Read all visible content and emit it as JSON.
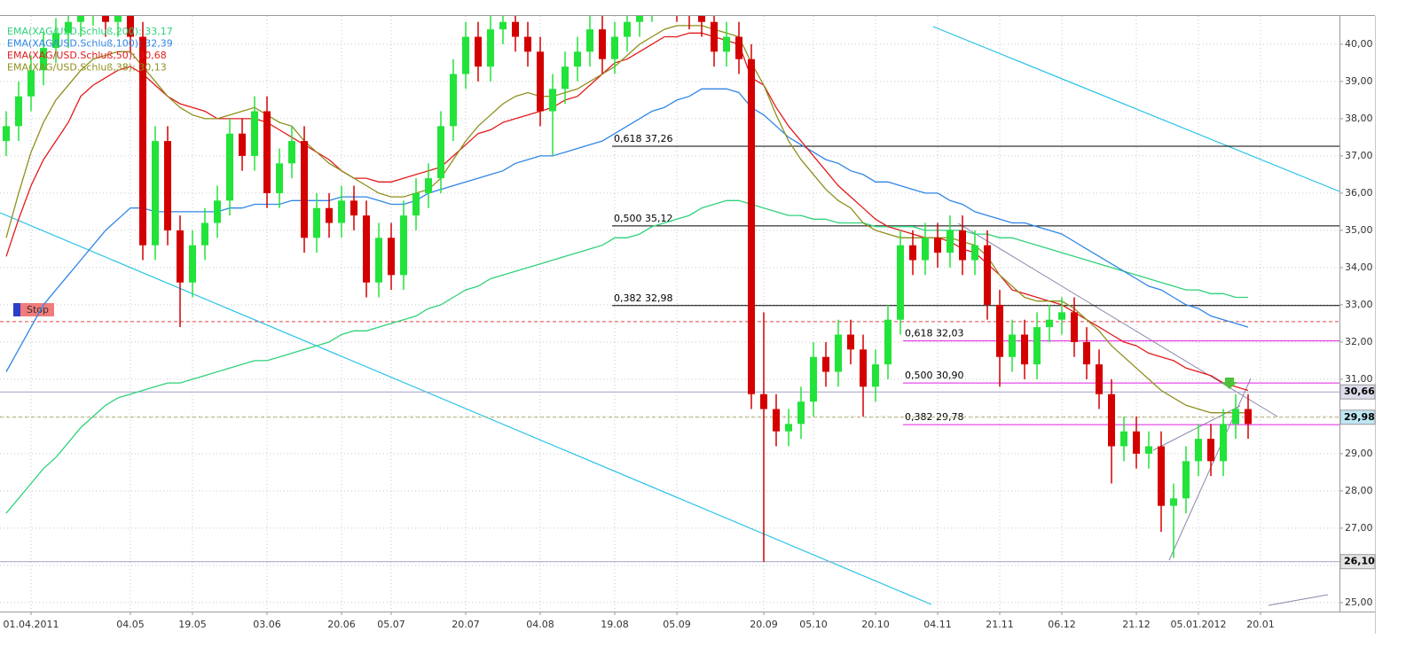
{
  "chart_data": {
    "type": "candlestick",
    "categories": [
      null,
      null,
      "01.04.2011",
      null,
      null,
      null,
      null,
      null,
      null,
      null,
      "04.05",
      null,
      null,
      null,
      null,
      "19.05",
      null,
      null,
      null,
      null,
      null,
      "03.06",
      null,
      null,
      null,
      null,
      null,
      "20.06",
      null,
      null,
      null,
      "05.07",
      null,
      null,
      null,
      null,
      null,
      "20.07",
      null,
      null,
      null,
      null,
      null,
      "04.08",
      null,
      null,
      null,
      null,
      null,
      "19.08",
      null,
      null,
      null,
      null,
      "05.09",
      null,
      null,
      null,
      null,
      null,
      null,
      "20.09",
      null,
      null,
      null,
      "05.10",
      null,
      null,
      null,
      null,
      "20.10",
      null,
      null,
      null,
      null,
      "04.11",
      null,
      null,
      null,
      null,
      "21.11",
      null,
      null,
      null,
      null,
      "06.12",
      null,
      null,
      null,
      null,
      null,
      "21.12",
      null,
      null,
      null,
      null,
      "05.01.2012",
      null,
      null,
      null,
      null,
      "20.01"
    ],
    "open": [
      37.4,
      37.8,
      38.6,
      39.3,
      39.9,
      40.3,
      40.6,
      40.9,
      41.0,
      40.6,
      40.8,
      40.2,
      34.6,
      37.4,
      35.0,
      33.6,
      34.6,
      35.2,
      35.8,
      37.6,
      37.0,
      38.2,
      36.0,
      36.8,
      37.4,
      34.8,
      35.6,
      35.2,
      35.8,
      35.4,
      33.6,
      34.8,
      33.8,
      35.4,
      36.0,
      36.4,
      37.8,
      39.2,
      40.2,
      39.4,
      40.4,
      40.6,
      40.2,
      39.8,
      38.2,
      38.8,
      39.4,
      39.8,
      40.4,
      39.6,
      40.2,
      40.6,
      41.0,
      41.2,
      41.4,
      41.0,
      40.8,
      40.6,
      39.8,
      40.2,
      39.6,
      30.6,
      30.2,
      29.6,
      29.8,
      30.4,
      31.6,
      31.2,
      32.2,
      31.8,
      30.8,
      31.4,
      32.6,
      34.6,
      34.2,
      34.8,
      34.4,
      35.0,
      34.2,
      34.6,
      33.0,
      31.6,
      32.2,
      31.4,
      32.4,
      32.6,
      32.8,
      32.0,
      31.4,
      30.6,
      29.2,
      29.6,
      29.0,
      29.2,
      27.6,
      27.8,
      28.8,
      29.4,
      28.8,
      29.8,
      30.2,
      null
    ],
    "high": [
      38.2,
      39.0,
      39.7,
      40.3,
      40.7,
      41.0,
      41.3,
      41.4,
      41.4,
      41.2,
      41.2,
      40.6,
      37.8,
      37.8,
      35.4,
      35.0,
      35.6,
      36.2,
      38.0,
      38.0,
      38.6,
      38.6,
      37.2,
      37.8,
      37.8,
      36.0,
      36.0,
      36.2,
      36.2,
      35.8,
      35.2,
      35.2,
      35.8,
      36.4,
      36.8,
      38.2,
      39.6,
      40.6,
      40.6,
      40.8,
      41.0,
      41.0,
      40.6,
      40.2,
      39.2,
      39.8,
      40.2,
      40.8,
      40.8,
      40.6,
      41.0,
      41.4,
      41.6,
      41.8,
      41.8,
      41.4,
      41.2,
      41.0,
      40.6,
      40.6,
      40.0,
      32.8,
      30.6,
      30.2,
      30.8,
      32.0,
      32.0,
      32.6,
      32.6,
      32.2,
      31.8,
      33.0,
      35.0,
      35.0,
      35.2,
      35.2,
      35.4,
      35.4,
      35.0,
      35.0,
      33.4,
      32.6,
      32.6,
      32.8,
      33.0,
      33.2,
      33.2,
      32.4,
      31.8,
      31.0,
      30.0,
      30.0,
      29.6,
      29.6,
      28.2,
      29.2,
      29.8,
      29.8,
      30.2,
      30.6,
      30.6,
      null
    ],
    "low": [
      37.0,
      37.4,
      38.2,
      38.9,
      39.5,
      39.9,
      40.2,
      40.5,
      40.2,
      40.2,
      39.8,
      34.2,
      34.2,
      34.6,
      32.4,
      33.2,
      34.2,
      34.8,
      35.4,
      36.6,
      36.6,
      35.6,
      35.6,
      36.4,
      34.4,
      34.4,
      34.8,
      34.8,
      35.0,
      33.2,
      33.2,
      33.4,
      33.4,
      35.0,
      35.6,
      36.0,
      37.4,
      38.8,
      39.0,
      39.0,
      40.0,
      39.8,
      39.4,
      37.8,
      37.0,
      38.4,
      39.0,
      39.4,
      39.2,
      39.2,
      39.8,
      40.2,
      40.6,
      40.8,
      40.6,
      40.4,
      40.2,
      39.4,
      39.4,
      39.2,
      30.2,
      26.1,
      29.2,
      29.2,
      29.4,
      30.0,
      30.8,
      30.8,
      31.4,
      30.0,
      30.4,
      31.0,
      32.2,
      33.8,
      33.8,
      34.0,
      34.0,
      33.8,
      33.8,
      32.6,
      30.8,
      31.2,
      31.0,
      31.0,
      32.0,
      32.2,
      31.6,
      31.0,
      30.2,
      28.2,
      28.8,
      28.6,
      28.6,
      26.9,
      26.2,
      27.4,
      28.4,
      28.4,
      28.4,
      29.4,
      29.4,
      null
    ],
    "close": [
      37.8,
      38.6,
      39.3,
      39.9,
      40.3,
      40.6,
      40.9,
      41.0,
      40.6,
      40.8,
      40.2,
      34.6,
      37.4,
      35.0,
      33.6,
      34.6,
      35.2,
      35.8,
      37.6,
      37.0,
      38.2,
      36.0,
      36.8,
      37.4,
      34.8,
      35.6,
      35.2,
      35.8,
      35.4,
      33.6,
      34.8,
      33.8,
      35.4,
      36.0,
      36.4,
      37.8,
      39.2,
      40.2,
      39.4,
      40.4,
      40.6,
      40.2,
      39.8,
      38.2,
      38.8,
      39.4,
      39.8,
      40.4,
      39.6,
      40.2,
      40.6,
      41.0,
      41.2,
      41.4,
      41.0,
      40.8,
      40.6,
      39.8,
      40.2,
      39.6,
      30.6,
      30.2,
      29.6,
      29.8,
      30.4,
      31.6,
      31.2,
      32.2,
      31.8,
      30.8,
      31.4,
      32.6,
      34.6,
      34.2,
      34.8,
      34.4,
      35.0,
      34.2,
      34.6,
      33.0,
      31.6,
      32.2,
      31.4,
      32.4,
      32.6,
      32.8,
      32.0,
      31.4,
      30.6,
      29.2,
      29.6,
      29.0,
      29.2,
      27.6,
      27.8,
      28.8,
      29.4,
      28.8,
      29.8,
      30.2,
      29.8,
      null
    ],
    "up_color": "#22e33a",
    "down_color": "#d40000",
    "ylim": [
      24.76,
      40.76
    ],
    "yticks": [
      {
        "value": 25,
        "label": "25,00"
      },
      {
        "value": 26,
        "label": "26,00"
      },
      {
        "value": 27,
        "label": "27,00"
      },
      {
        "value": 28,
        "label": "28,00"
      },
      {
        "value": 29,
        "label": "29,00"
      },
      {
        "value": 30,
        "label": "30,00"
      },
      {
        "value": 31,
        "label": "31,00"
      },
      {
        "value": 32,
        "label": "32,00"
      },
      {
        "value": 33,
        "label": "33,00"
      },
      {
        "value": 34,
        "label": "34,00"
      },
      {
        "value": 35,
        "label": "35,00"
      },
      {
        "value": 36,
        "label": "36,00"
      },
      {
        "value": 37,
        "label": "37,00"
      },
      {
        "value": 38,
        "label": "38,00"
      },
      {
        "value": 39,
        "label": "39,00"
      },
      {
        "value": 40,
        "label": "40,00"
      }
    ],
    "grid": true,
    "legend": "top-left",
    "series": [
      {
        "name": "EMA(XAG/USD.Schluß,200): 33,17",
        "color": "#2fd27a",
        "values": [
          27.4,
          27.8,
          28.2,
          28.6,
          28.9,
          29.3,
          29.7,
          30.0,
          30.3,
          30.5,
          30.6,
          30.7,
          30.8,
          30.9,
          30.9,
          31.0,
          31.1,
          31.2,
          31.3,
          31.4,
          31.5,
          31.5,
          31.6,
          31.7,
          31.8,
          31.9,
          32.0,
          32.2,
          32.3,
          32.3,
          32.4,
          32.5,
          32.6,
          32.7,
          32.9,
          33.0,
          33.2,
          33.4,
          33.5,
          33.7,
          33.8,
          33.9,
          34.0,
          34.1,
          34.2,
          34.3,
          34.4,
          34.5,
          34.6,
          34.8,
          34.8,
          34.9,
          35.1,
          35.2,
          35.3,
          35.4,
          35.6,
          35.7,
          35.8,
          35.8,
          35.7,
          35.6,
          35.5,
          35.4,
          35.4,
          35.3,
          35.3,
          35.2,
          35.2,
          35.2,
          35.1,
          35.1,
          35.1,
          35.1,
          35.0,
          35.0,
          35.0,
          35.0,
          34.9,
          34.9,
          34.8,
          34.8,
          34.7,
          34.6,
          34.5,
          34.4,
          34.3,
          34.2,
          34.1,
          34.0,
          33.9,
          33.8,
          33.7,
          33.6,
          33.5,
          33.4,
          33.4,
          33.3,
          33.3,
          33.2,
          33.2,
          null
        ]
      },
      {
        "name": "EMA(XAG/USD.Schluß,100): 32,39",
        "color": "#2f86e6",
        "values": [
          31.2,
          31.8,
          32.4,
          33.0,
          33.4,
          33.8,
          34.2,
          34.6,
          35.0,
          35.3,
          35.6,
          35.6,
          35.5,
          35.5,
          35.5,
          35.5,
          35.5,
          35.5,
          35.6,
          35.6,
          35.7,
          35.7,
          35.7,
          35.8,
          35.8,
          35.8,
          35.8,
          35.9,
          35.9,
          35.9,
          35.8,
          35.7,
          35.7,
          35.8,
          36.0,
          36.1,
          36.2,
          36.3,
          36.4,
          36.5,
          36.6,
          36.8,
          36.9,
          37.0,
          37.0,
          37.1,
          37.2,
          37.3,
          37.4,
          37.6,
          37.8,
          38.0,
          38.2,
          38.3,
          38.5,
          38.6,
          38.8,
          38.8,
          38.8,
          38.7,
          38.3,
          38.1,
          37.8,
          37.5,
          37.3,
          37.1,
          36.9,
          36.8,
          36.6,
          36.5,
          36.3,
          36.3,
          36.2,
          36.1,
          36.0,
          36.0,
          35.8,
          35.7,
          35.5,
          35.4,
          35.3,
          35.2,
          35.2,
          35.1,
          35.0,
          34.9,
          34.7,
          34.5,
          34.3,
          34.1,
          33.9,
          33.7,
          33.5,
          33.4,
          33.2,
          33.0,
          32.9,
          32.7,
          32.6,
          32.5,
          32.4,
          null
        ]
      },
      {
        "name": "EMA(XAG/USD.Schluß,50): 30,68",
        "color": "#e21b1b",
        "values": [
          34.3,
          35.3,
          36.2,
          36.9,
          37.4,
          37.9,
          38.6,
          38.9,
          39.1,
          39.3,
          39.4,
          39.2,
          38.9,
          38.6,
          38.4,
          38.3,
          38.2,
          38.0,
          38.0,
          38.0,
          38.0,
          37.9,
          37.7,
          37.5,
          37.3,
          37.1,
          36.9,
          36.6,
          36.4,
          36.4,
          36.3,
          36.3,
          36.4,
          36.5,
          36.6,
          36.7,
          37.0,
          37.3,
          37.6,
          37.7,
          37.9,
          38.0,
          38.1,
          38.2,
          38.3,
          38.5,
          38.6,
          38.9,
          39.2,
          39.5,
          39.6,
          39.8,
          40.0,
          40.2,
          40.2,
          40.3,
          40.3,
          40.2,
          40.1,
          40.0,
          39.1,
          38.9,
          38.3,
          37.8,
          37.4,
          37.0,
          36.6,
          36.2,
          35.9,
          35.6,
          35.3,
          35.1,
          35.0,
          34.9,
          34.8,
          34.8,
          34.7,
          34.5,
          34.4,
          34.1,
          33.8,
          33.4,
          33.3,
          33.2,
          33.1,
          33.0,
          32.8,
          32.6,
          32.4,
          32.2,
          32.0,
          31.9,
          31.7,
          31.6,
          31.5,
          31.3,
          31.2,
          31.1,
          30.9,
          30.8,
          30.7,
          null
        ]
      },
      {
        "name": "EMA(XAG/USD.Schluß,38): 30,13",
        "color": "#8f8f1f",
        "values": [
          34.8,
          36.0,
          37.1,
          37.9,
          38.5,
          38.9,
          39.3,
          39.6,
          39.7,
          39.8,
          39.8,
          39.4,
          39.0,
          38.6,
          38.3,
          38.1,
          38.0,
          38.0,
          38.1,
          38.2,
          38.3,
          38.1,
          37.9,
          37.8,
          37.4,
          37.1,
          36.8,
          36.6,
          36.4,
          36.2,
          36.0,
          35.9,
          35.9,
          36.0,
          36.1,
          36.4,
          36.9,
          37.4,
          37.8,
          38.1,
          38.4,
          38.6,
          38.7,
          38.6,
          38.6,
          38.7,
          38.8,
          39.0,
          39.2,
          39.4,
          39.7,
          40.0,
          40.2,
          40.4,
          40.5,
          40.5,
          40.5,
          40.4,
          40.3,
          40.2,
          39.5,
          38.9,
          38.1,
          37.4,
          36.9,
          36.5,
          36.1,
          35.8,
          35.6,
          35.2,
          35.0,
          34.9,
          34.8,
          34.8,
          34.8,
          34.8,
          34.8,
          34.7,
          34.6,
          34.3,
          33.8,
          33.5,
          33.2,
          33.1,
          33.1,
          33.1,
          32.9,
          32.6,
          32.3,
          31.9,
          31.6,
          31.3,
          31.0,
          30.7,
          30.5,
          30.3,
          30.2,
          30.1,
          30.1,
          30.1,
          30.1,
          null
        ]
      }
    ],
    "fib_levels": [
      {
        "color": "#000000",
        "levels": [
          {
            "label": "0,618 37,26",
            "value": 37.26
          },
          {
            "label": "0,500 35,12",
            "value": 35.12
          },
          {
            "label": "0,382 32,98",
            "value": 32.98
          }
        ]
      },
      {
        "color": "#e020e0",
        "levels": [
          {
            "label": "0,618 32,03",
            "value": 32.03
          },
          {
            "label": "0,500 30,90",
            "value": 30.9
          },
          {
            "label": "0,382 29,78",
            "value": 29.78
          }
        ]
      }
    ],
    "price_lines": [
      {
        "label": "30,66",
        "value": 30.66,
        "color": "#a0a0cc",
        "box": "#dcdcec"
      },
      {
        "label": "29,98",
        "value": 29.98,
        "color": "#b0b070",
        "box": "#bfe6f5"
      },
      {
        "label": "26,10",
        "value": 26.1,
        "color": "#a0a0cc",
        "box": "#e4e4e4"
      }
    ],
    "stop": {
      "label": "Stop",
      "value": 32.55,
      "color": "#e04848"
    }
  }
}
